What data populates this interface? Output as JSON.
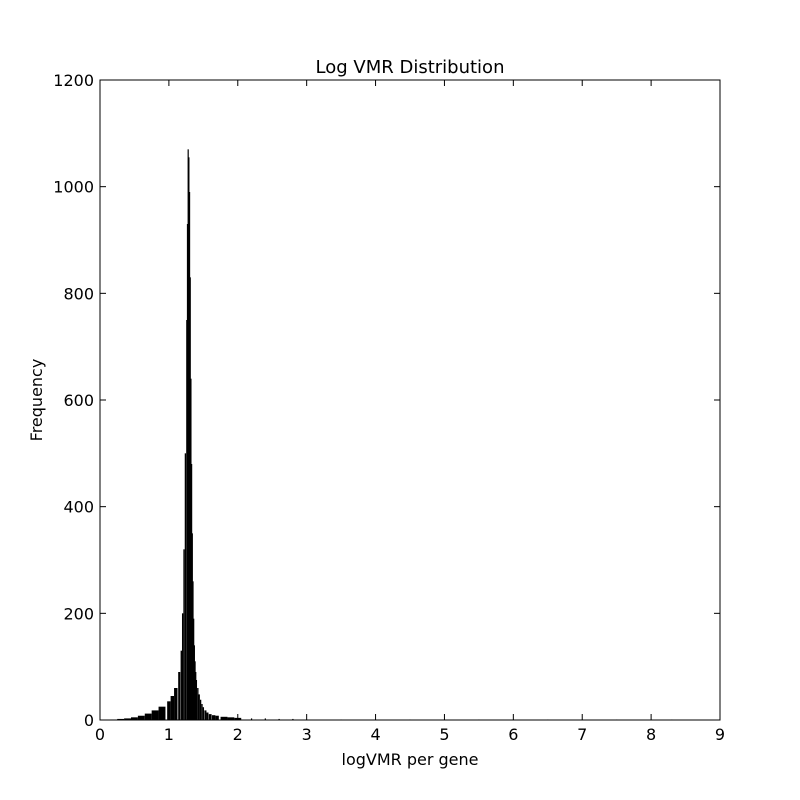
{
  "chart_data": {
    "type": "bar",
    "title": "Log VMR Distribution",
    "xlabel": "logVMR per gene",
    "ylabel": "Frequency",
    "xlim": [
      0,
      9
    ],
    "ylim": [
      0,
      1200
    ],
    "xticks": [
      "0",
      "1",
      "2",
      "3",
      "4",
      "5",
      "6",
      "7",
      "8",
      "9"
    ],
    "yticks": [
      "0",
      "200",
      "400",
      "600",
      "800",
      "1000",
      "1200"
    ],
    "grid": false,
    "bar_color": "#000000",
    "x": [
      0.2,
      0.3,
      0.4,
      0.5,
      0.6,
      0.7,
      0.8,
      0.9,
      1.0,
      1.05,
      1.1,
      1.15,
      1.18,
      1.2,
      1.22,
      1.24,
      1.26,
      1.27,
      1.28,
      1.29,
      1.3,
      1.31,
      1.32,
      1.33,
      1.34,
      1.35,
      1.36,
      1.37,
      1.38,
      1.39,
      1.4,
      1.42,
      1.44,
      1.46,
      1.48,
      1.5,
      1.53,
      1.56,
      1.6,
      1.65,
      1.7,
      1.8,
      1.9,
      2.0,
      2.2,
      2.4,
      2.6,
      2.8,
      3.0,
      3.5,
      4.0,
      4.5,
      5.0,
      5.5,
      6.0,
      6.5,
      7.0,
      7.5,
      8.0,
      8.3
    ],
    "values": [
      1,
      2,
      3,
      5,
      8,
      12,
      18,
      25,
      35,
      45,
      60,
      90,
      130,
      200,
      320,
      500,
      750,
      930,
      1070,
      1055,
      990,
      830,
      640,
      480,
      350,
      260,
      190,
      140,
      110,
      90,
      75,
      60,
      48,
      38,
      30,
      24,
      18,
      14,
      11,
      9,
      8,
      6,
      5,
      4,
      3,
      3,
      2,
      2,
      1,
      1,
      1,
      1,
      1,
      1,
      1,
      1,
      1,
      1,
      1,
      1
    ]
  }
}
